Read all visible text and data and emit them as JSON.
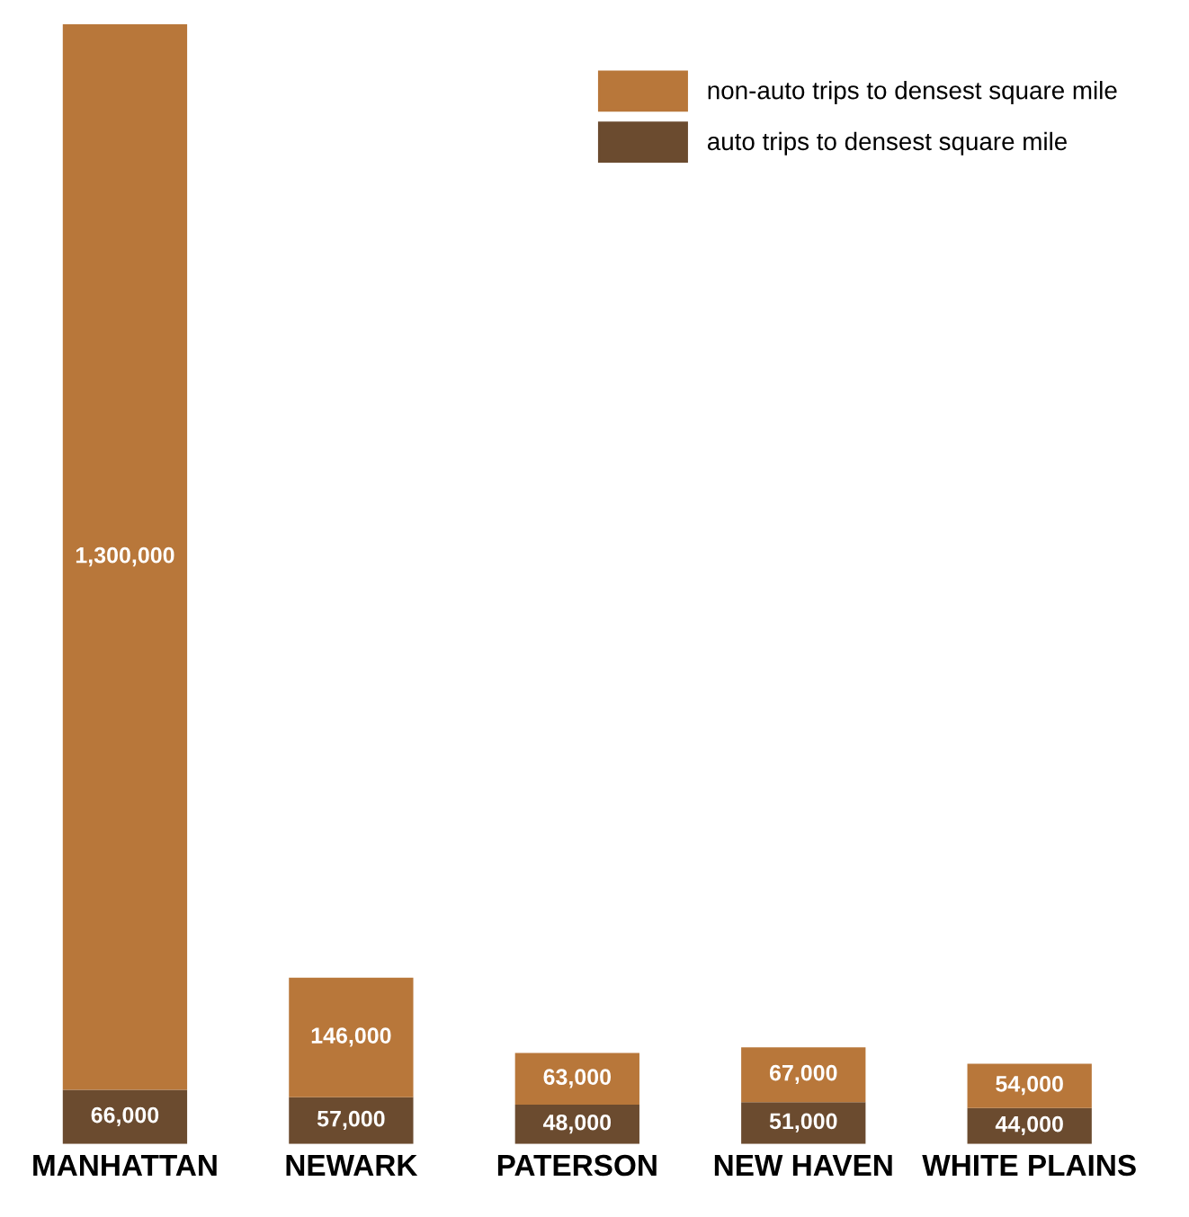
{
  "chart_data": {
    "type": "bar",
    "stacked": true,
    "categories": [
      "MANHATTAN",
      "NEWARK",
      "PATERSON",
      "NEW HAVEN",
      "WHITE PLAINS"
    ],
    "series": [
      {
        "name": "auto trips to densest square mile",
        "color": "#6b4b2f",
        "values": [
          66000,
          57000,
          48000,
          51000,
          44000
        ],
        "value_labels": [
          "66,000",
          "57,000",
          "48,000",
          "51,000",
          "44,000"
        ]
      },
      {
        "name": "non-auto trips to densest square mile",
        "color": "#b8773a",
        "values": [
          1300000,
          146000,
          63000,
          67000,
          54000
        ],
        "value_labels": [
          "1,300,000",
          "146,000",
          "63,000",
          "67,000",
          "54,000"
        ]
      }
    ],
    "legend": "top right",
    "tick_labels": "x",
    "grid": false
  }
}
